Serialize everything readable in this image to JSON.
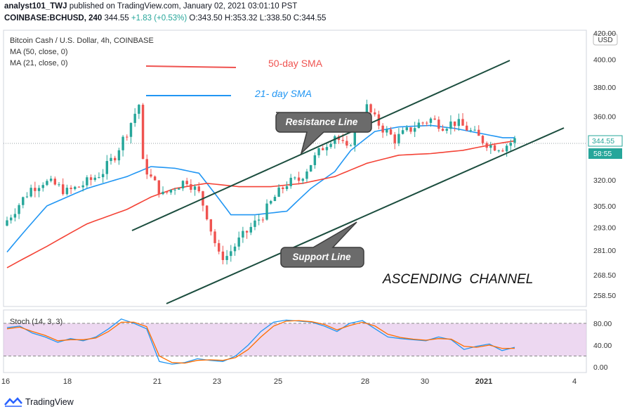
{
  "header": {
    "author": "analyst101_TWJ",
    "published_text": "published on TradingView.com, January 02, 2021 03:01:10 PST",
    "symbol": "COINBASE:BCHUSD, 240",
    "last": "344.55",
    "change": "+1.83 (+0.53%)",
    "ohlc": "O:343.50 H:353.32 L:338.50 C:344.55"
  },
  "legend": {
    "title": "Bitcoin Cash / U.S. Dollar, 4h, COINBASE",
    "ma50": "MA (50, close, 0)",
    "ma21": "MA (21, close, 0)"
  },
  "annotations": {
    "sma50": "50-day SMA",
    "sma21": "21- day SMA",
    "resistance": "Resistance Line",
    "support": "Support Line",
    "channel": "ASCENDING  CHANNEL"
  },
  "price_axis": {
    "currency": "USD",
    "ticks": [
      "420.00",
      "400.00",
      "380.00",
      "360.00",
      "320.00",
      "305.00",
      "293.00",
      "281.00",
      "268.50",
      "258.50"
    ],
    "last_price": "344.55",
    "countdown": "58:55"
  },
  "stoch": {
    "label": "Stoch (14, 3, 3)",
    "ticks": [
      "80.00",
      "40.00",
      "0.00"
    ]
  },
  "time_axis": [
    "16",
    "18",
    "21",
    "23",
    "25",
    "28",
    "30",
    "2021",
    "4"
  ],
  "brand": "TradingView",
  "colors": {
    "up": "#26a69a",
    "down": "#ef5350",
    "ma21": "#2196f3",
    "ma50": "#f44336",
    "channel": "#1b4d3e",
    "stoch_band": "#e1bee7"
  },
  "chart_data": [
    {
      "type": "candlestick",
      "title": "Bitcoin Cash / U.S. Dollar, 4h, COINBASE",
      "x": [
        "16",
        "18",
        "21",
        "23",
        "25",
        "28",
        "30",
        "2021",
        "4"
      ],
      "y_ticks": [
        420,
        400,
        380,
        360,
        320,
        305,
        293,
        281,
        268.5,
        258.5
      ],
      "scale": "log",
      "close_path": [
        [
          0,
          297
        ],
        [
          3,
          306
        ],
        [
          6,
          315
        ],
        [
          9,
          319
        ],
        [
          12,
          317
        ],
        [
          15,
          313
        ],
        [
          18,
          316
        ],
        [
          21,
          320
        ],
        [
          24,
          325
        ],
        [
          27,
          335
        ],
        [
          30,
          350
        ],
        [
          32,
          362
        ],
        [
          33,
          368
        ],
        [
          34,
          330
        ],
        [
          36,
          321
        ],
        [
          39,
          311
        ],
        [
          42,
          316
        ],
        [
          45,
          320
        ],
        [
          48,
          312
        ],
        [
          50,
          300
        ],
        [
          51,
          292
        ],
        [
          53,
          278
        ],
        [
          55,
          278
        ],
        [
          58,
          286
        ],
        [
          61,
          293
        ],
        [
          64,
          300
        ],
        [
          67,
          310
        ],
        [
          70,
          318
        ],
        [
          73,
          320
        ],
        [
          76,
          330
        ],
        [
          79,
          340
        ],
        [
          82,
          348
        ],
        [
          85,
          338
        ],
        [
          88,
          356
        ],
        [
          90,
          366
        ],
        [
          92,
          358
        ],
        [
          94,
          352
        ],
        [
          97,
          345
        ],
        [
          100,
          350
        ],
        [
          103,
          355
        ],
        [
          106,
          358
        ],
        [
          109,
          354
        ],
        [
          112,
          356
        ],
        [
          115,
          352
        ],
        [
          118,
          346
        ],
        [
          121,
          341
        ],
        [
          124,
          340
        ],
        [
          127,
          344.55
        ]
      ],
      "series": [
        {
          "name": "MA (21, close, 0)",
          "path": [
            [
              0,
              280
            ],
            [
              10,
              305
            ],
            [
              20,
              315
            ],
            [
              30,
              322
            ],
            [
              36,
              328
            ],
            [
              42,
              327
            ],
            [
              48,
              324
            ],
            [
              52,
              312
            ],
            [
              56,
              300
            ],
            [
              62,
              300
            ],
            [
              70,
              302
            ],
            [
              76,
              315
            ],
            [
              82,
              325
            ],
            [
              86,
              338
            ],
            [
              92,
              350
            ],
            [
              98,
              353
            ],
            [
              106,
              354
            ],
            [
              112,
              352
            ],
            [
              118,
              349
            ],
            [
              124,
              346
            ],
            [
              127,
              346
            ]
          ]
        },
        {
          "name": "MA (50, close, 0)",
          "path": [
            [
              0,
              272
            ],
            [
              10,
              283
            ],
            [
              20,
              295
            ],
            [
              30,
              303
            ],
            [
              36,
              310
            ],
            [
              42,
              315
            ],
            [
              50,
              318
            ],
            [
              58,
              316
            ],
            [
              66,
              316
            ],
            [
              74,
              318
            ],
            [
              82,
              322
            ],
            [
              90,
              330
            ],
            [
              98,
              335
            ],
            [
              106,
              336
            ],
            [
              114,
              338
            ],
            [
              122,
              342
            ],
            [
              127,
              344
            ]
          ]
        }
      ]
    },
    {
      "type": "line",
      "title": "Stoch (14, 3, 3)",
      "y_ticks": [
        80,
        40,
        0
      ],
      "series": [
        {
          "name": "%K",
          "values": [
            72,
            75,
            62,
            55,
            45,
            52,
            48,
            55,
            70,
            88,
            80,
            70,
            10,
            5,
            8,
            15,
            12,
            10,
            20,
            40,
            65,
            82,
            86,
            84,
            82,
            75,
            65,
            80,
            85,
            70,
            55,
            52,
            50,
            48,
            55,
            50,
            32,
            38,
            42,
            30,
            36
          ]
        },
        {
          "name": "%D",
          "values": [
            70,
            73,
            65,
            58,
            48,
            50,
            50,
            53,
            65,
            82,
            82,
            74,
            20,
            8,
            7,
            12,
            13,
            12,
            17,
            32,
            55,
            75,
            84,
            85,
            83,
            78,
            68,
            76,
            82,
            75,
            60,
            54,
            51,
            49,
            52,
            51,
            38,
            36,
            40,
            34,
            34
          ]
        }
      ]
    }
  ]
}
